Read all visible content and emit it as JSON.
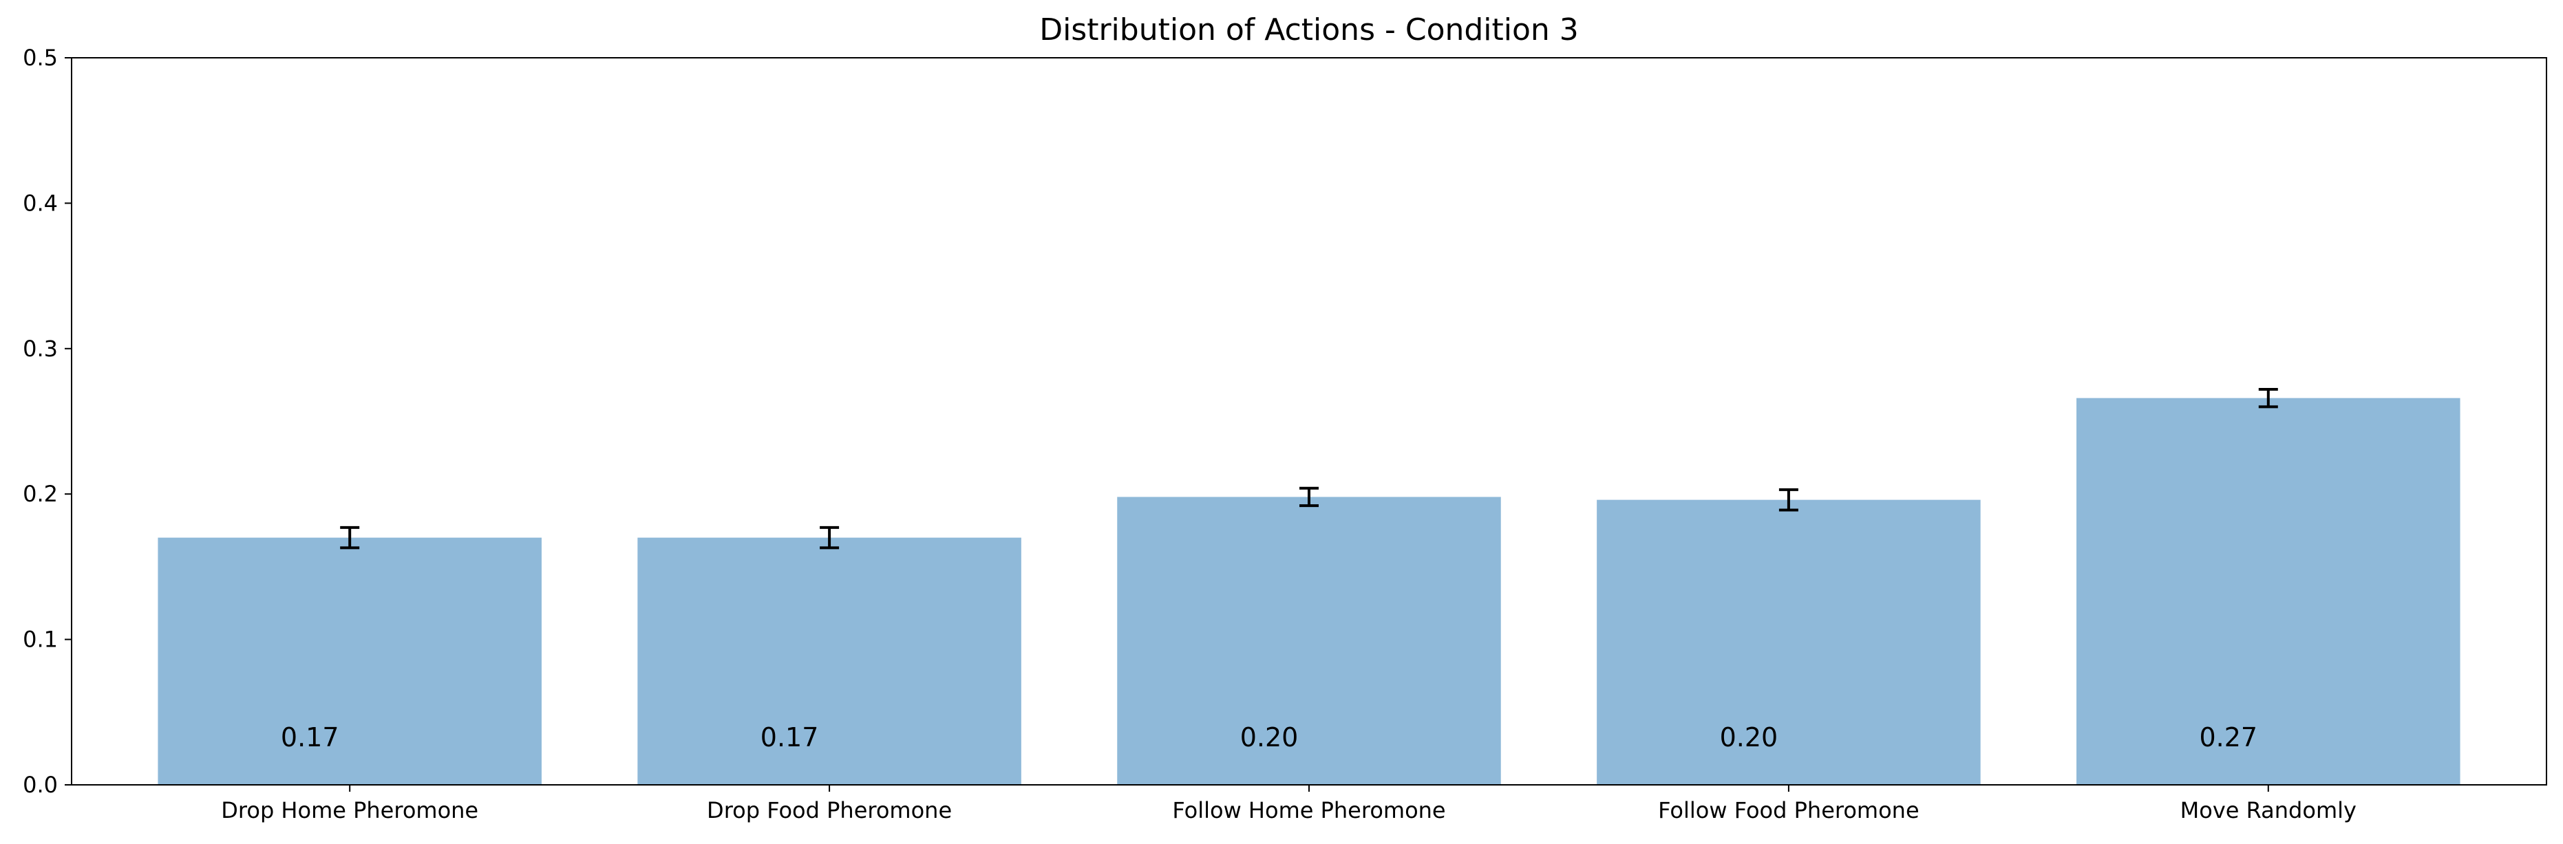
{
  "chart_data": {
    "type": "bar",
    "title": "Distribution of Actions - Condition 3",
    "xlabel": "",
    "ylabel": "",
    "categories": [
      "Drop Home Pheromone",
      "Drop Food Pheromone",
      "Follow Home Pheromone",
      "Follow Food Pheromone",
      "Move Randomly"
    ],
    "values": [
      0.17,
      0.17,
      0.198,
      0.196,
      0.266
    ],
    "errors": [
      0.007,
      0.007,
      0.006,
      0.007,
      0.006
    ],
    "value_labels": [
      "0.17",
      "0.17",
      "0.20",
      "0.20",
      "0.27"
    ],
    "ylim": [
      0,
      0.5
    ],
    "yticks": [
      0.0,
      0.1,
      0.2,
      0.3,
      0.4,
      0.5
    ],
    "ytick_labels": [
      "0.0",
      "0.1",
      "0.2",
      "0.3",
      "0.4",
      "0.5"
    ],
    "grid": false,
    "legend": "none",
    "bar_color": "#8fb9d9",
    "error_color": "#000000"
  }
}
